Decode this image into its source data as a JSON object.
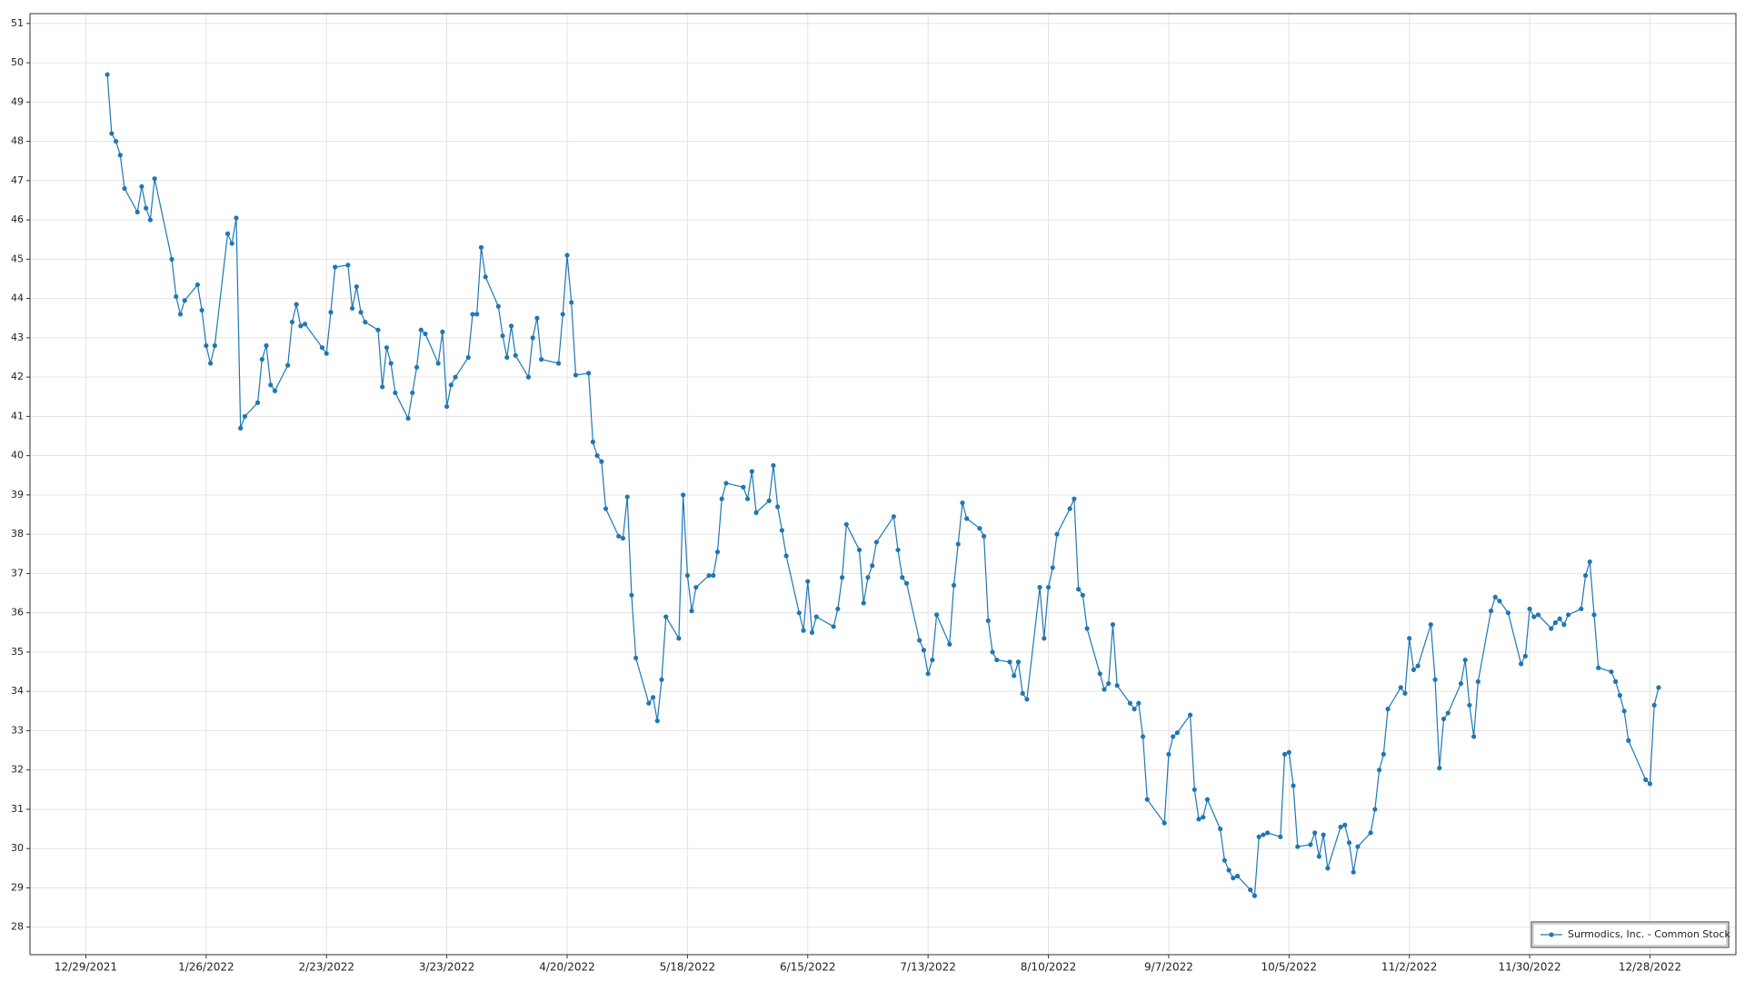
{
  "chart_data": {
    "type": "line",
    "x": [
      "1/3/2022",
      "1/4/2022",
      "1/5/2022",
      "1/6/2022",
      "1/7/2022",
      "1/10/2022",
      "1/11/2022",
      "1/12/2022",
      "1/13/2022",
      "1/14/2022",
      "1/18/2022",
      "1/19/2022",
      "1/20/2022",
      "1/21/2022",
      "1/24/2022",
      "1/25/2022",
      "1/26/2022",
      "1/27/2022",
      "1/28/2022",
      "1/31/2022",
      "2/1/2022",
      "2/2/2022",
      "2/3/2022",
      "2/4/2022",
      "2/7/2022",
      "2/8/2022",
      "2/9/2022",
      "2/10/2022",
      "2/11/2022",
      "2/14/2022",
      "2/15/2022",
      "2/16/2022",
      "2/17/2022",
      "2/18/2022",
      "2/22/2022",
      "2/23/2022",
      "2/24/2022",
      "2/25/2022",
      "2/28/2022",
      "3/1/2022",
      "3/2/2022",
      "3/3/2022",
      "3/4/2022",
      "3/7/2022",
      "3/8/2022",
      "3/9/2022",
      "3/10/2022",
      "3/11/2022",
      "3/14/2022",
      "3/15/2022",
      "3/16/2022",
      "3/17/2022",
      "3/18/2022",
      "3/21/2022",
      "3/22/2022",
      "3/23/2022",
      "3/24/2022",
      "3/25/2022",
      "3/28/2022",
      "3/29/2022",
      "3/30/2022",
      "3/31/2022",
      "4/1/2022",
      "4/4/2022",
      "4/5/2022",
      "4/6/2022",
      "4/7/2022",
      "4/8/2022",
      "4/11/2022",
      "4/12/2022",
      "4/13/2022",
      "4/14/2022",
      "4/18/2022",
      "4/19/2022",
      "4/20/2022",
      "4/21/2022",
      "4/22/2022",
      "4/25/2022",
      "4/26/2022",
      "4/27/2022",
      "4/28/2022",
      "4/29/2022",
      "5/2/2022",
      "5/3/2022",
      "5/4/2022",
      "5/5/2022",
      "5/6/2022",
      "5/9/2022",
      "5/10/2022",
      "5/11/2022",
      "5/12/2022",
      "5/13/2022",
      "5/16/2022",
      "5/17/2022",
      "5/18/2022",
      "5/19/2022",
      "5/20/2022",
      "5/23/2022",
      "5/24/2022",
      "5/25/2022",
      "5/26/2022",
      "5/27/2022",
      "5/31/2022",
      "6/1/2022",
      "6/2/2022",
      "6/3/2022",
      "6/6/2022",
      "6/7/2022",
      "6/8/2022",
      "6/9/2022",
      "6/10/2022",
      "6/13/2022",
      "6/14/2022",
      "6/15/2022",
      "6/16/2022",
      "6/17/2022",
      "6/21/2022",
      "6/22/2022",
      "6/23/2022",
      "6/24/2022",
      "6/27/2022",
      "6/28/2022",
      "6/29/2022",
      "6/30/2022",
      "7/1/2022",
      "7/5/2022",
      "7/6/2022",
      "7/7/2022",
      "7/8/2022",
      "7/11/2022",
      "7/12/2022",
      "7/13/2022",
      "7/14/2022",
      "7/15/2022",
      "7/18/2022",
      "7/19/2022",
      "7/20/2022",
      "7/21/2022",
      "7/22/2022",
      "7/25/2022",
      "7/26/2022",
      "7/27/2022",
      "7/28/2022",
      "7/29/2022",
      "8/1/2022",
      "8/2/2022",
      "8/3/2022",
      "8/4/2022",
      "8/5/2022",
      "8/8/2022",
      "8/9/2022",
      "8/10/2022",
      "8/11/2022",
      "8/12/2022",
      "8/15/2022",
      "8/16/2022",
      "8/17/2022",
      "8/18/2022",
      "8/19/2022",
      "8/22/2022",
      "8/23/2022",
      "8/24/2022",
      "8/25/2022",
      "8/26/2022",
      "8/29/2022",
      "8/30/2022",
      "8/31/2022",
      "9/1/2022",
      "9/2/2022",
      "9/6/2022",
      "9/7/2022",
      "9/8/2022",
      "9/9/2022",
      "9/12/2022",
      "9/13/2022",
      "9/14/2022",
      "9/15/2022",
      "9/16/2022",
      "9/19/2022",
      "9/20/2022",
      "9/21/2022",
      "9/22/2022",
      "9/23/2022",
      "9/26/2022",
      "9/27/2022",
      "9/28/2022",
      "9/29/2022",
      "9/30/2022",
      "10/3/2022",
      "10/4/2022",
      "10/5/2022",
      "10/6/2022",
      "10/7/2022",
      "10/10/2022",
      "10/11/2022",
      "10/12/2022",
      "10/13/2022",
      "10/14/2022",
      "10/17/2022",
      "10/18/2022",
      "10/19/2022",
      "10/20/2022",
      "10/21/2022",
      "10/24/2022",
      "10/25/2022",
      "10/26/2022",
      "10/27/2022",
      "10/28/2022",
      "10/31/2022",
      "11/1/2022",
      "11/2/2022",
      "11/3/2022",
      "11/4/2022",
      "11/7/2022",
      "11/8/2022",
      "11/9/2022",
      "11/10/2022",
      "11/11/2022",
      "11/14/2022",
      "11/15/2022",
      "11/16/2022",
      "11/17/2022",
      "11/18/2022",
      "11/21/2022",
      "11/22/2022",
      "11/23/2022",
      "11/25/2022",
      "11/28/2022",
      "11/29/2022",
      "11/30/2022",
      "12/1/2022",
      "12/2/2022",
      "12/5/2022",
      "12/6/2022",
      "12/7/2022",
      "12/8/2022",
      "12/9/2022",
      "12/12/2022",
      "12/13/2022",
      "12/14/2022",
      "12/15/2022",
      "12/16/2022",
      "12/19/2022",
      "12/20/2022",
      "12/21/2022",
      "12/22/2022",
      "12/23/2022",
      "12/27/2022",
      "12/28/2022",
      "12/29/2022",
      "12/30/2022"
    ],
    "series": [
      {
        "name": "Surmodics, Inc. - Common Stock",
        "color": "#1f77b4",
        "values": [
          49.7,
          48.2,
          48.0,
          47.65,
          46.8,
          46.2,
          46.85,
          46.3,
          46.0,
          47.05,
          45.0,
          44.05,
          43.6,
          43.95,
          44.35,
          43.7,
          42.8,
          42.35,
          42.8,
          45.65,
          45.4,
          46.05,
          40.7,
          41.0,
          41.35,
          42.45,
          42.8,
          41.8,
          41.65,
          42.3,
          43.4,
          43.85,
          43.3,
          43.35,
          42.75,
          42.6,
          43.65,
          44.8,
          44.85,
          43.75,
          44.3,
          43.65,
          43.4,
          43.2,
          41.75,
          42.75,
          42.35,
          41.6,
          40.95,
          41.6,
          42.25,
          43.2,
          43.1,
          42.35,
          43.15,
          41.25,
          41.8,
          42.0,
          42.5,
          43.6,
          43.6,
          45.3,
          44.55,
          43.8,
          43.05,
          42.5,
          43.3,
          42.55,
          42.0,
          43.0,
          43.5,
          42.45,
          42.35,
          43.6,
          45.1,
          43.9,
          42.05,
          42.1,
          40.35,
          40.0,
          39.85,
          38.65,
          37.95,
          37.9,
          38.95,
          36.45,
          34.85,
          33.7,
          33.85,
          33.25,
          34.3,
          35.9,
          35.35,
          39.0,
          36.95,
          36.05,
          36.65,
          36.95,
          36.95,
          37.55,
          38.9,
          39.3,
          39.2,
          38.9,
          39.6,
          38.55,
          38.85,
          39.75,
          38.7,
          38.1,
          37.45,
          36.0,
          35.55,
          36.8,
          35.5,
          35.9,
          35.65,
          36.1,
          36.9,
          38.25,
          37.6,
          36.25,
          36.9,
          37.2,
          37.8,
          38.45,
          37.6,
          36.9,
          36.75,
          35.3,
          35.05,
          34.45,
          34.8,
          35.95,
          35.2,
          36.7,
          37.75,
          38.8,
          38.4,
          38.15,
          37.95,
          35.8,
          35.0,
          34.8,
          34.75,
          34.4,
          34.75,
          33.95,
          33.8,
          36.65,
          35.35,
          36.65,
          37.15,
          38.0,
          38.65,
          38.9,
          36.6,
          36.45,
          35.6,
          34.45,
          34.05,
          34.2,
          35.7,
          34.15,
          33.7,
          33.55,
          33.7,
          32.85,
          31.25,
          30.65,
          32.4,
          32.85,
          32.95,
          33.4,
          31.5,
          30.75,
          30.8,
          31.25,
          30.5,
          29.7,
          29.45,
          29.25,
          29.3,
          28.95,
          28.8,
          30.3,
          30.35,
          30.4,
          30.3,
          32.4,
          32.45,
          31.6,
          30.05,
          30.1,
          30.4,
          29.8,
          30.35,
          29.5,
          30.55,
          30.6,
          30.15,
          29.4,
          30.05,
          30.4,
          31.0,
          32.0,
          32.4,
          33.55,
          34.1,
          33.95,
          35.35,
          34.55,
          34.65,
          35.7,
          34.3,
          32.05,
          33.3,
          33.45,
          34.2,
          34.8,
          33.65,
          32.85,
          34.25,
          36.05,
          36.4,
          36.3,
          36.0,
          34.7,
          34.9,
          36.1,
          35.9,
          35.95,
          35.6,
          35.75,
          35.85,
          35.7,
          35.95,
          36.1,
          36.95,
          37.3,
          35.95,
          34.6,
          34.5,
          34.25,
          33.9,
          33.5,
          32.75,
          31.75,
          31.65,
          33.65,
          34.1
        ]
      }
    ],
    "xlim": [
      "12/16/2021",
      "1/17/2023"
    ],
    "xticks": [
      "12/29/2021",
      "1/26/2022",
      "2/23/2022",
      "3/23/2022",
      "4/20/2022",
      "5/18/2022",
      "6/15/2022",
      "7/13/2022",
      "8/10/2022",
      "9/7/2022",
      "10/5/2022",
      "11/2/2022",
      "11/30/2022",
      "12/28/2022"
    ],
    "ylim": [
      27.3,
      51.25
    ],
    "yticks": [
      28,
      29,
      30,
      31,
      32,
      33,
      34,
      35,
      36,
      37,
      38,
      39,
      40,
      41,
      42,
      43,
      44,
      45,
      46,
      47,
      48,
      49,
      50,
      51
    ],
    "grid": true,
    "legend": "lower right"
  }
}
